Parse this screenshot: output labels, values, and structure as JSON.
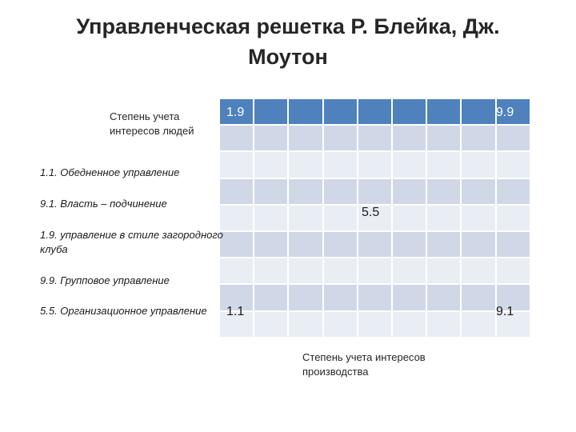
{
  "title": {
    "line1": "Управленческая решетка Р. Блейка, Дж.",
    "line2": "Моутон"
  },
  "axis": {
    "y_label": "Степень учета интересов людей",
    "x_label": "Степень учета интересов производства"
  },
  "grid": {
    "top_left": "1.9",
    "top_right": "9.9",
    "center": "5.5",
    "bottom_left": "1.1",
    "bottom_right": "9.1"
  },
  "styles": [
    "1.1. Обедненное управление",
    "9.1. Власть – подчинение",
    "1.9. управление в стиле загородного клуба",
    "9.9. Групповое управление",
    "5.5. Организационное управление"
  ],
  "colors": {
    "header": "#4f81bd",
    "row_dark": "#d0d8e8",
    "row_light": "#e9edf4"
  }
}
